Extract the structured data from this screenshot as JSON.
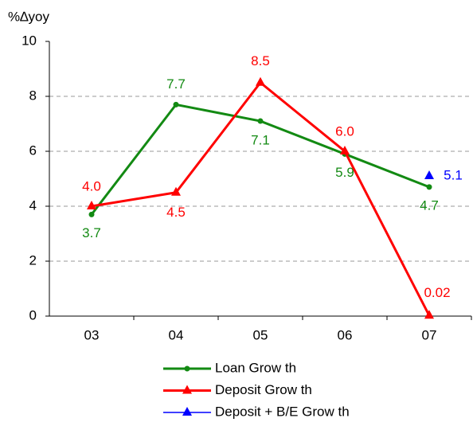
{
  "chart_data": {
    "type": "line",
    "y_axis_label": "%∆yoy",
    "categories": [
      "03",
      "04",
      "05",
      "06",
      "07"
    ],
    "ylim": [
      0,
      10
    ],
    "yticks": [
      0,
      2,
      4,
      6,
      8,
      10
    ],
    "grid": true,
    "series": [
      {
        "name": "Loan Grow th",
        "color": "#138a13",
        "marker": "circle",
        "values": [
          3.7,
          7.7,
          7.1,
          5.9,
          4.7
        ],
        "value_labels": [
          "3.7",
          "7.7",
          "7.1",
          "5.9",
          "4.7"
        ]
      },
      {
        "name": "Deposit Grow th",
        "color": "#ff0000",
        "marker": "triangle",
        "values": [
          4.0,
          4.5,
          8.5,
          6.0,
          0.02
        ],
        "value_labels": [
          "4.0",
          "4.5",
          "8.5",
          "6.0",
          "0.02"
        ]
      },
      {
        "name": "Deposit + B/E Grow th",
        "color": "#0000ff",
        "marker": "triangle",
        "values": [
          null,
          null,
          null,
          null,
          5.1
        ],
        "value_labels": [
          null,
          null,
          null,
          null,
          "5.1"
        ]
      }
    ]
  }
}
